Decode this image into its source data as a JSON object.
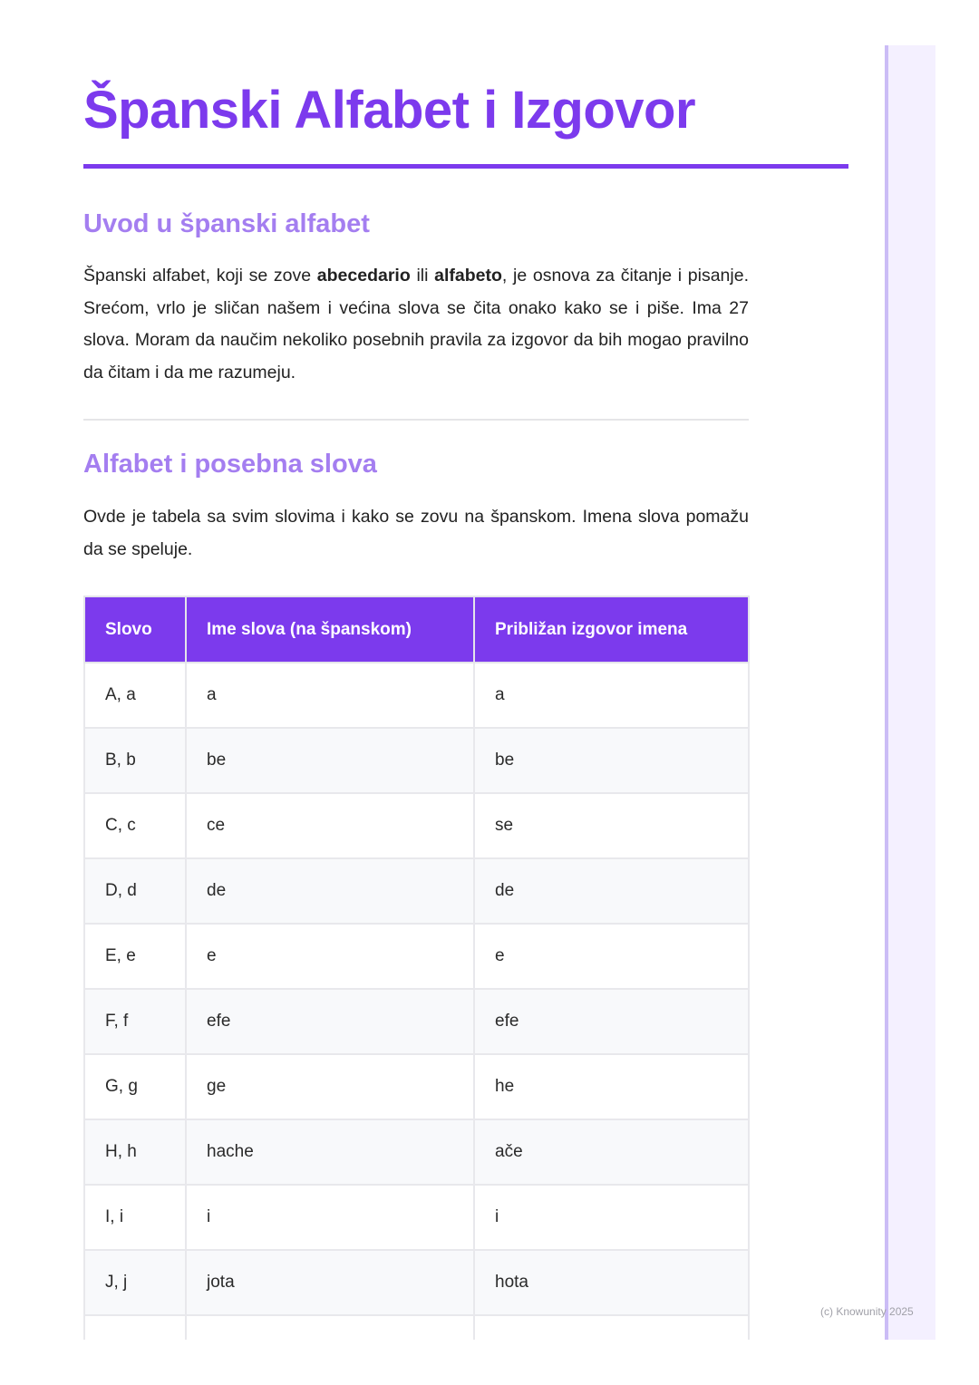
{
  "title": "Španski Alfabet i Izgovor",
  "section1": {
    "heading": "Uvod u španski alfabet",
    "p_before_b1": "Španski alfabet, koji se zove ",
    "b1": "abecedario",
    "p_mid": " ili ",
    "b2": "alfabeto",
    "p_after": ", je osnova za čitanje i pisanje. Srećom, vrlo je sličan našem i većina slova se čita onako kako se i piše. Ima 27 slova. Moram da naučim nekoliko posebnih pravila za izgovor da bih mogao pravilno da čitam i da me razumeju."
  },
  "section2": {
    "heading": "Alfabet i posebna slova",
    "paragraph": "Ovde je tabela sa svim slovima i kako se zovu na španskom. Imena slova pomažu da se speluje."
  },
  "table": {
    "headers": [
      "Slovo",
      "Ime slova (na španskom)",
      "Približan izgovor imena"
    ],
    "rows": [
      [
        "A, a",
        "a",
        "a"
      ],
      [
        "B, b",
        "be",
        "be"
      ],
      [
        "C, c",
        "ce",
        "se"
      ],
      [
        "D, d",
        "de",
        "de"
      ],
      [
        "E, e",
        "e",
        "e"
      ],
      [
        "F, f",
        "efe",
        "efe"
      ],
      [
        "G, g",
        "ge",
        "he"
      ],
      [
        "H, h",
        "hache",
        "ače"
      ],
      [
        "I, i",
        "i",
        "i"
      ],
      [
        "J, j",
        "jota",
        "hota"
      ],
      [
        "",
        "",
        ""
      ]
    ]
  },
  "footer": "(c) Knowunity 2025",
  "colors": {
    "accent": "#7c3aed",
    "heading": "#a47ef0",
    "sidebar": "#f4f0ff"
  }
}
